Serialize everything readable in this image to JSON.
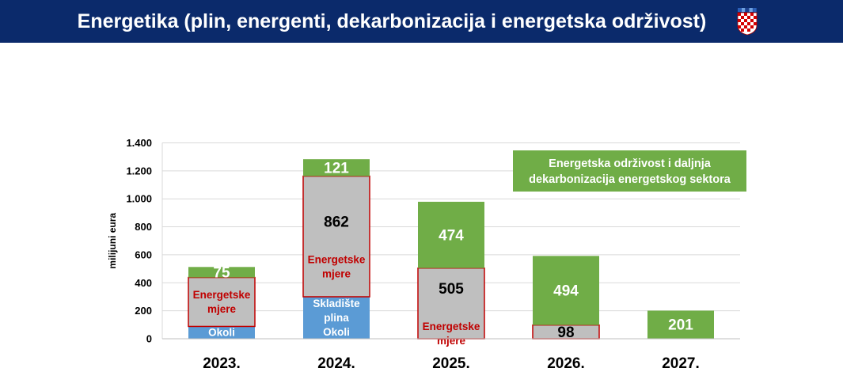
{
  "header": {
    "title": "Energetika (plin, energenti, dekarbonizacija i energetska održivost)",
    "bg_color": "#0b2a6b",
    "coat_of_arms_icon": "croatian-coat-of-arms-icon"
  },
  "chart_data": {
    "type": "bar",
    "stacked": true,
    "categories": [
      "2023.",
      "2024.",
      "2025.",
      "2026.",
      "2027."
    ],
    "ylabel": "milijuni eura",
    "ylim": [
      0,
      1400
    ],
    "yticks": [
      0,
      200,
      400,
      600,
      800,
      1000,
      1200,
      1400
    ],
    "ytick_labels": [
      "0",
      "200",
      "400",
      "600",
      "800",
      "1.000",
      "1.200",
      "1.400"
    ],
    "grid": true,
    "series": [
      {
        "key": "blue",
        "color": "#5b9bd5",
        "values": [
          88,
          300,
          0,
          0,
          0
        ],
        "labels": [
          "Okoli",
          "Skladište plina Okoli",
          "",
          "",
          ""
        ],
        "value_labels": [
          "",
          "",
          "",
          "",
          ""
        ]
      },
      {
        "key": "grey",
        "color": "#bfbfbf",
        "border_color": "#c00000",
        "values": [
          350,
          862,
          505,
          98,
          0
        ],
        "labels": [
          "Energetske mjere",
          "Energetske mjere",
          "Energetske mjere",
          "",
          ""
        ],
        "value_labels": [
          "",
          "862",
          "505",
          "98",
          ""
        ]
      },
      {
        "key": "green",
        "color": "#70ad47",
        "values": [
          75,
          121,
          474,
          494,
          201
        ],
        "labels": [
          "",
          "",
          "",
          "",
          ""
        ],
        "value_labels": [
          "75",
          "121",
          "474",
          "494",
          "201"
        ]
      }
    ],
    "annotation": {
      "lines": [
        "Energetska održivost i daljnja",
        "dekarbonizacija energetskog sektora"
      ],
      "color": "#70ad47",
      "placement": "top-right"
    }
  }
}
